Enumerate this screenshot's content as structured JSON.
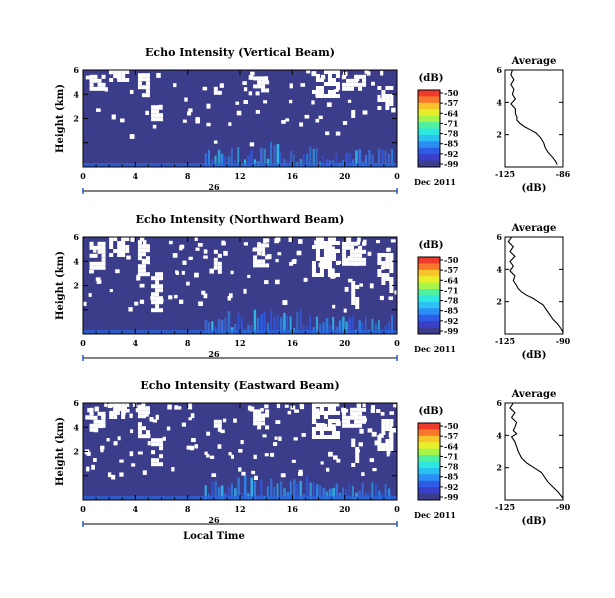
{
  "chart_data": [
    {
      "type": "heatmap",
      "title": "Echo Intensity (Vertical Beam)",
      "ylabel": "Height (km)",
      "yticks": [
        "6",
        "4",
        "2",
        ""
      ],
      "xticks": [
        "0",
        "4",
        "8",
        "12",
        "16",
        "20",
        "0"
      ],
      "date_label": "26",
      "month_label": "Dec 2011",
      "xlim": [
        0,
        24
      ],
      "ylim": [
        0,
        6
      ],
      "colorbar": {
        "unit": "(dB)",
        "ticks": [
          "-50",
          "-57",
          "-64",
          "-71",
          "-78",
          "-85",
          "-92",
          "-99"
        ],
        "colors": [
          "#ef3a2c",
          "#f7782a",
          "#f9c42a",
          "#e8ee2a",
          "#a6f54a",
          "#4ff0a2",
          "#2ee8e0",
          "#2bc1f3",
          "#2a8ef5",
          "#2e5ce6",
          "#3a3fc7",
          "#3b3c8a"
        ]
      },
      "profile": {
        "title": "Average",
        "xlabel": "(dB)",
        "xticks": [
          "-125",
          "-86"
        ],
        "yticks": [
          "6",
          "4",
          "2"
        ],
        "xlim": [
          -125,
          -86
        ],
        "ylim": [
          0,
          6
        ],
        "points": [
          [
            -120,
            6.0
          ],
          [
            -121,
            5.7
          ],
          [
            -119,
            5.4
          ],
          [
            -121,
            5.1
          ],
          [
            -119,
            4.8
          ],
          [
            -120,
            4.5
          ],
          [
            -118,
            4.2
          ],
          [
            -121,
            3.9
          ],
          [
            -118,
            3.6
          ],
          [
            -118,
            3.3
          ],
          [
            -117,
            3.1
          ],
          [
            -117,
            2.9
          ],
          [
            -115,
            2.7
          ],
          [
            -112,
            2.5
          ],
          [
            -108,
            2.3
          ],
          [
            -104,
            2.1
          ],
          [
            -101,
            1.8
          ],
          [
            -99,
            1.5
          ],
          [
            -98,
            1.2
          ],
          [
            -96,
            0.9
          ],
          [
            -93,
            0.6
          ],
          [
            -91,
            0.35
          ],
          [
            -90,
            0.15
          ]
        ]
      }
    },
    {
      "type": "heatmap",
      "title": "Echo Intensity (Northward Beam)",
      "ylabel": "Height (km)",
      "yticks": [
        "6",
        "4",
        "2",
        ""
      ],
      "xticks": [
        "0",
        "4",
        "8",
        "12",
        "16",
        "20",
        "0"
      ],
      "date_label": "26",
      "month_label": "Dec 2011",
      "xlim": [
        0,
        24
      ],
      "ylim": [
        0,
        6
      ],
      "colorbar": {
        "unit": "(dB)",
        "ticks": [
          "-50",
          "-57",
          "-64",
          "-71",
          "-78",
          "-85",
          "-92",
          "-99"
        ],
        "colors": [
          "#ef3a2c",
          "#f7782a",
          "#f9c42a",
          "#e8ee2a",
          "#a6f54a",
          "#4ff0a2",
          "#2ee8e0",
          "#2bc1f3",
          "#2a8ef5",
          "#2e5ce6",
          "#3a3fc7",
          "#3b3c8a"
        ]
      },
      "profile": {
        "title": "Average",
        "xlabel": "(dB)",
        "xticks": [
          "-125",
          "-90"
        ],
        "yticks": [
          "6",
          "4",
          "2"
        ],
        "xlim": [
          -125,
          -90
        ],
        "ylim": [
          0,
          6
        ],
        "points": [
          [
            -121,
            6.0
          ],
          [
            -123,
            5.7
          ],
          [
            -120,
            5.4
          ],
          [
            -122,
            5.1
          ],
          [
            -119,
            4.8
          ],
          [
            -122,
            4.5
          ],
          [
            -120,
            4.2
          ],
          [
            -122,
            3.9
          ],
          [
            -119,
            3.6
          ],
          [
            -120,
            3.3
          ],
          [
            -118,
            3.0
          ],
          [
            -117,
            2.8
          ],
          [
            -115,
            2.6
          ],
          [
            -112,
            2.4
          ],
          [
            -108,
            2.2
          ],
          [
            -105,
            2.0
          ],
          [
            -102,
            1.8
          ],
          [
            -100,
            1.5
          ],
          [
            -98,
            1.2
          ],
          [
            -96,
            0.9
          ],
          [
            -93,
            0.6
          ],
          [
            -91,
            0.3
          ],
          [
            -90,
            0.1
          ]
        ]
      }
    },
    {
      "type": "heatmap",
      "title": "Echo Intensity (Eastward Beam)",
      "ylabel": "Height (km)",
      "yticks": [
        "6",
        "4",
        "2",
        ""
      ],
      "xticks": [
        "0",
        "4",
        "8",
        "12",
        "16",
        "20",
        "0"
      ],
      "date_label": "26",
      "month_label": "Dec 2011",
      "xlabel": "Local Time",
      "xlim": [
        0,
        24
      ],
      "ylim": [
        0,
        6
      ],
      "colorbar": {
        "unit": "(dB)",
        "ticks": [
          "-50",
          "-57",
          "-64",
          "-71",
          "-78",
          "-85",
          "-92",
          "-99"
        ],
        "colors": [
          "#ef3a2c",
          "#f7782a",
          "#f9c42a",
          "#e8ee2a",
          "#a6f54a",
          "#4ff0a2",
          "#2ee8e0",
          "#2bc1f3",
          "#2a8ef5",
          "#2e5ce6",
          "#3a3fc7",
          "#3b3c8a"
        ]
      },
      "profile": {
        "title": "Average",
        "xlabel": "(dB)",
        "xticks": [
          "-125",
          "-90"
        ],
        "yticks": [
          "6",
          "4",
          "2"
        ],
        "xlim": [
          -125,
          -90
        ],
        "ylim": [
          0,
          6
        ],
        "points": [
          [
            -120,
            6.0
          ],
          [
            -122,
            5.7
          ],
          [
            -119,
            5.4
          ],
          [
            -121,
            5.1
          ],
          [
            -118,
            4.8
          ],
          [
            -119,
            4.5
          ],
          [
            -120,
            4.3
          ],
          [
            -118,
            4.1
          ],
          [
            -121,
            3.9
          ],
          [
            -119,
            3.6
          ],
          [
            -118,
            3.3
          ],
          [
            -117,
            3.0
          ],
          [
            -116,
            2.8
          ],
          [
            -115,
            2.6
          ],
          [
            -112,
            2.3
          ],
          [
            -109,
            2.1
          ],
          [
            -106,
            1.9
          ],
          [
            -103,
            1.7
          ],
          [
            -101,
            1.4
          ],
          [
            -99,
            1.1
          ],
          [
            -96,
            0.8
          ],
          [
            -93,
            0.5
          ],
          [
            -91,
            0.25
          ],
          [
            -90,
            0.1
          ]
        ]
      }
    }
  ]
}
